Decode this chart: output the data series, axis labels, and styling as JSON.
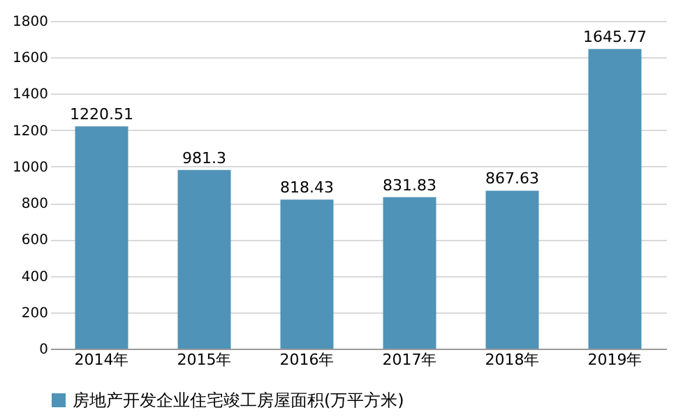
{
  "chart_data": {
    "type": "bar",
    "categories": [
      "2014年",
      "2015年",
      "2016年",
      "2017年",
      "2018年",
      "2019年"
    ],
    "series": [
      {
        "name": "房地产开发企业住宅竣工房屋面积(万平方米)",
        "color": "#4f93b8",
        "values": [
          1220.51,
          981.3,
          818.43,
          831.83,
          867.63,
          1645.77
        ]
      }
    ],
    "ylim": [
      0,
      1800
    ],
    "yticks": [
      0,
      200,
      400,
      600,
      800,
      1000,
      1200,
      1400,
      1600,
      1800
    ],
    "grid": "y",
    "legend": "bottom",
    "data_labels": true
  }
}
